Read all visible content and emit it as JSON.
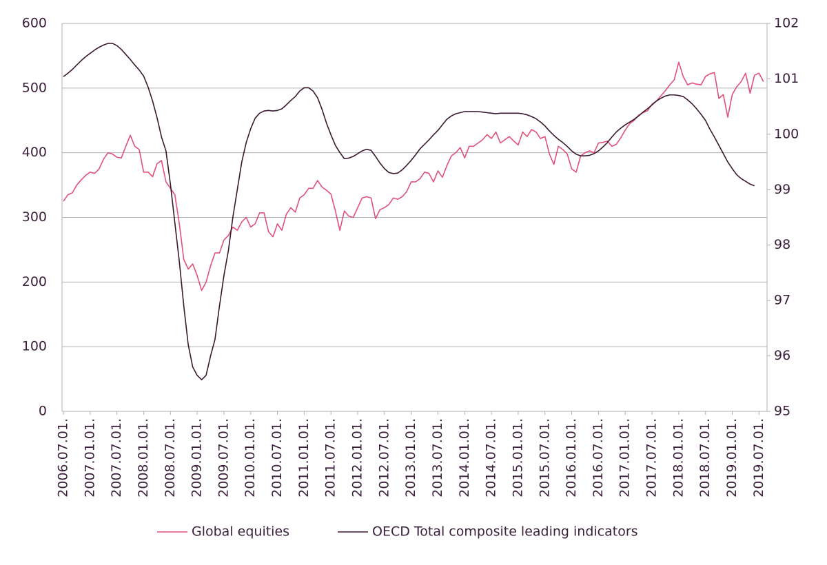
{
  "chart_data": {
    "type": "line",
    "categories": [
      "2006.07.01.",
      null,
      null,
      null,
      null,
      null,
      "2007.01.01.",
      null,
      null,
      null,
      null,
      null,
      "2007.07.01.",
      null,
      null,
      null,
      null,
      null,
      "2008.01.01.",
      null,
      null,
      null,
      null,
      null,
      "2008.07.01.",
      null,
      null,
      null,
      null,
      null,
      "2009.01.01.",
      null,
      null,
      null,
      null,
      null,
      "2009.07.01.",
      null,
      null,
      null,
      null,
      null,
      "2010.01.01.",
      null,
      null,
      null,
      null,
      null,
      "2010.07.01.",
      null,
      null,
      null,
      null,
      null,
      "2011.01.01.",
      null,
      null,
      null,
      null,
      null,
      "2011.07.01.",
      null,
      null,
      null,
      null,
      null,
      "2012.01.01.",
      null,
      null,
      null,
      null,
      null,
      "2012.07.01.",
      null,
      null,
      null,
      null,
      null,
      "2013.01.01.",
      null,
      null,
      null,
      null,
      null,
      "2013.07.01.",
      null,
      null,
      null,
      null,
      null,
      "2014.01.01.",
      null,
      null,
      null,
      null,
      null,
      "2014.07.01.",
      null,
      null,
      null,
      null,
      null,
      "2015.01.01.",
      null,
      null,
      null,
      null,
      null,
      "2015.07.01.",
      null,
      null,
      null,
      null,
      null,
      "2016.01.01.",
      null,
      null,
      null,
      null,
      null,
      "2016.07.01.",
      null,
      null,
      null,
      null,
      null,
      "2017.01.01.",
      null,
      null,
      null,
      null,
      null,
      "2017.07.01.",
      null,
      null,
      null,
      null,
      null,
      "2018.01.01.",
      null,
      null,
      null,
      null,
      null,
      "2018.07.01.",
      null,
      null,
      null,
      null,
      null,
      "2019.01.01.",
      null,
      null,
      null,
      null,
      null,
      "2019.07.01.",
      null
    ],
    "series": [
      {
        "name": "Global equities",
        "color": "#e0507a",
        "axis": "y",
        "values": [
          325,
          335,
          338,
          350,
          358,
          365,
          370,
          368,
          375,
          390,
          400,
          398,
          393,
          392,
          410,
          427,
          410,
          405,
          370,
          370,
          363,
          383,
          388,
          355,
          345,
          335,
          290,
          235,
          220,
          228,
          210,
          187,
          200,
          225,
          245,
          245,
          265,
          272,
          285,
          280,
          293,
          300,
          285,
          290,
          307,
          307,
          278,
          270,
          290,
          280,
          305,
          315,
          308,
          330,
          335,
          345,
          345,
          357,
          347,
          342,
          336,
          310,
          280,
          310,
          302,
          300,
          315,
          330,
          332,
          330,
          298,
          312,
          315,
          320,
          330,
          328,
          332,
          340,
          355,
          355,
          360,
          370,
          368,
          355,
          372,
          362,
          380,
          395,
          400,
          408,
          392,
          410,
          410,
          415,
          420,
          428,
          422,
          432,
          415,
          420,
          425,
          418,
          412,
          432,
          425,
          436,
          432,
          422,
          425,
          398,
          382,
          410,
          405,
          398,
          375,
          370,
          395,
          400,
          403,
          400,
          415,
          416,
          418,
          410,
          413,
          423,
          435,
          445,
          450,
          458,
          462,
          465,
          475,
          480,
          488,
          496,
          505,
          513,
          540,
          518,
          505,
          508,
          506,
          505,
          518,
          522,
          524,
          484,
          490,
          455,
          490,
          502,
          510,
          523,
          492,
          520,
          523,
          510
        ]
      },
      {
        "name": "OECD Total composite leading indicators",
        "color": "#3a1830",
        "axis": "y2",
        "values": [
          101.04,
          101.1,
          101.17,
          101.25,
          101.33,
          101.4,
          101.46,
          101.52,
          101.57,
          101.61,
          101.64,
          101.64,
          101.6,
          101.53,
          101.44,
          101.35,
          101.25,
          101.16,
          101.05,
          100.85,
          100.6,
          100.3,
          99.95,
          99.7,
          99.1,
          98.4,
          97.7,
          96.9,
          96.2,
          95.8,
          95.65,
          95.57,
          95.65,
          96.0,
          96.3,
          96.9,
          97.45,
          97.9,
          98.5,
          99.0,
          99.5,
          99.85,
          100.1,
          100.29,
          100.38,
          100.42,
          100.43,
          100.42,
          100.43,
          100.46,
          100.53,
          100.61,
          100.68,
          100.78,
          100.84,
          100.84,
          100.78,
          100.66,
          100.45,
          100.2,
          99.99,
          99.8,
          99.67,
          99.56,
          99.57,
          99.6,
          99.65,
          99.7,
          99.73,
          99.71,
          99.6,
          99.48,
          99.38,
          99.31,
          99.29,
          99.3,
          99.36,
          99.44,
          99.53,
          99.63,
          99.74,
          99.82,
          99.9,
          99.99,
          100.07,
          100.17,
          100.27,
          100.33,
          100.37,
          100.39,
          100.41,
          100.41,
          100.41,
          100.41,
          100.4,
          100.39,
          100.38,
          100.37,
          100.38,
          100.38,
          100.38,
          100.38,
          100.38,
          100.37,
          100.35,
          100.32,
          100.28,
          100.22,
          100.15,
          100.06,
          99.98,
          99.91,
          99.85,
          99.78,
          99.7,
          99.64,
          99.61,
          99.61,
          99.62,
          99.65,
          99.7,
          99.77,
          99.85,
          99.95,
          100.04,
          100.11,
          100.17,
          100.22,
          100.27,
          100.33,
          100.4,
          100.46,
          100.53,
          100.6,
          100.65,
          100.69,
          100.71,
          100.71,
          100.7,
          100.68,
          100.62,
          100.55,
          100.46,
          100.36,
          100.25,
          100.09,
          99.95,
          99.8,
          99.65,
          99.5,
          99.38,
          99.27,
          99.2,
          99.15,
          99.1,
          99.07,
          null,
          null
        ]
      }
    ],
    "ylim": [
      0,
      600
    ],
    "yticks": [
      0,
      100,
      200,
      300,
      400,
      500,
      600
    ],
    "y2lim": [
      95,
      102
    ],
    "y2ticks": [
      95,
      96,
      97,
      98,
      99,
      100,
      101,
      102
    ],
    "grid": true,
    "legend": "bottom"
  }
}
